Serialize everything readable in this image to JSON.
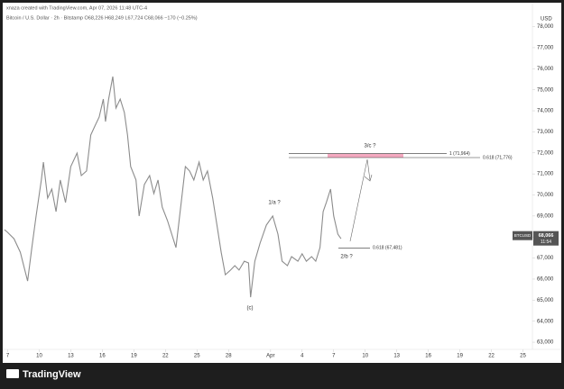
{
  "chart_data": {
    "type": "line",
    "header": "xnaza created with TradingView.com, Apr 07, 2026 11:48 UTC-4",
    "subtitle": "Bitcoin / U.S. Dollar · 2h · Bitstamp   O68,226  H68,249  L67,724  C68,066  −170 (−0.25%)",
    "y_axis_label": "USD",
    "x": [
      -0.3,
      0,
      0.6,
      1.2,
      1.9,
      2.3,
      2.7,
      3.2,
      3.4,
      3.8,
      4.2,
      4.6,
      5.0,
      5.5,
      6.0,
      6.6,
      7.0,
      7.5,
      7.9,
      8.3,
      8.7,
      9.1,
      9.3,
      9.6,
      10.0,
      10.3,
      10.7,
      11.1,
      11.4,
      11.7,
      12.2,
      12.5,
      13.0,
      13.5,
      13.9,
      14.3,
      14.7,
      15.2,
      15.6,
      16.0,
      16.5,
      16.9,
      17.3,
      17.7,
      18.2,
      18.6,
      19.0,
      19.5,
      19.9,
      20.3,
      20.7,
      21.2,
      21.6,
      22.0,
      22.5,
      22.9,
      23.1,
      23.5,
      24.0,
      24.6,
      25.2,
      25.7,
      26.1,
      26.6,
      27.0,
      27.6,
      28.0,
      28.4,
      28.9,
      29.3,
      29.7,
      30.0,
      30.3,
      30.7,
      31.0,
      31.4,
      31.7
    ],
    "series": [
      {
        "name": "BTCUSD",
        "color": "#8c8c8c",
        "values": [
          68350,
          68220,
          67920,
          67280,
          65910,
          67500,
          69000,
          70710,
          71560,
          69850,
          70280,
          69210,
          70710,
          69640,
          71350,
          71990,
          70920,
          71140,
          72850,
          73280,
          73700,
          74560,
          73490,
          74560,
          75630,
          74130,
          74560,
          73920,
          72850,
          71350,
          70710,
          69000,
          70500,
          70920,
          70070,
          70710,
          69420,
          68780,
          68140,
          67500,
          69640,
          71350,
          71140,
          70710,
          71560,
          70710,
          71140,
          69850,
          68570,
          67280,
          66210,
          66430,
          66640,
          66430,
          66850,
          66770,
          65140,
          66850,
          67710,
          68570,
          69000,
          68140,
          66850,
          66640,
          67070,
          66850,
          67200,
          66850,
          67070,
          66850,
          67500,
          69210,
          69640,
          70280,
          69000,
          68140,
          67920
        ]
      }
    ],
    "xlim": [
      -0.3,
      49.9
    ],
    "xticks": [
      {
        "value": 0,
        "label": "7"
      },
      {
        "value": 3,
        "label": "10"
      },
      {
        "value": 6,
        "label": "13"
      },
      {
        "value": 9,
        "label": "16"
      },
      {
        "value": 12,
        "label": "19"
      },
      {
        "value": 15,
        "label": "22"
      },
      {
        "value": 18,
        "label": "25"
      },
      {
        "value": 21,
        "label": "28"
      },
      {
        "value": 25,
        "label": "Apr"
      },
      {
        "value": 28,
        "label": "4"
      },
      {
        "value": 31,
        "label": "7"
      },
      {
        "value": 34,
        "label": "10"
      },
      {
        "value": 37,
        "label": "13"
      },
      {
        "value": 40,
        "label": "16"
      },
      {
        "value": 43,
        "label": "19"
      },
      {
        "value": 46,
        "label": "22"
      },
      {
        "value": 49,
        "label": "25"
      }
    ],
    "ylim": [
      62660,
      78410
    ],
    "yticks": [
      {
        "value": 63000,
        "label": "63,000"
      },
      {
        "value": 64000,
        "label": "64,000"
      },
      {
        "value": 65000,
        "label": "65,000"
      },
      {
        "value": 66000,
        "label": "66,000"
      },
      {
        "value": 67000,
        "label": "67,000"
      },
      {
        "value": 68000,
        "label": "68,000"
      },
      {
        "value": 69000,
        "label": "69,000"
      },
      {
        "value": 70000,
        "label": "70,000"
      },
      {
        "value": 71000,
        "label": "71,000"
      },
      {
        "value": 72000,
        "label": "72,000"
      },
      {
        "value": 73000,
        "label": "73,000"
      },
      {
        "value": 74000,
        "label": "74,000"
      },
      {
        "value": 75000,
        "label": "75,000"
      },
      {
        "value": 76000,
        "label": "76,000"
      },
      {
        "value": 77000,
        "label": "77,000"
      },
      {
        "value": 78000,
        "label": "78,000"
      }
    ],
    "levels": [
      {
        "label": "1 (71,964)",
        "value": 71964
      },
      {
        "label": "0.618 (71,776)",
        "value": 71776
      },
      {
        "label": "0.618 (67,481)",
        "value": 67481
      }
    ],
    "annotations": [
      "1/a ?",
      "3/c ?",
      "2/b ?",
      "(c)"
    ],
    "price_tag": {
      "symbol": "BTCUSD",
      "value": 68066,
      "label": "68,066",
      "countdown": "11:54"
    },
    "brand": "TradingView"
  }
}
